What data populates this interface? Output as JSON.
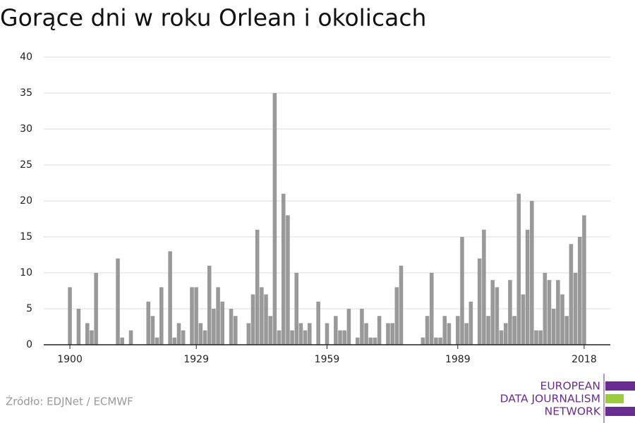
{
  "chart_data": {
    "type": "bar",
    "title": "Gorące dni w roku Orlean i okolicach",
    "x": [
      1900,
      1901,
      1902,
      1903,
      1904,
      1905,
      1906,
      1907,
      1908,
      1909,
      1910,
      1911,
      1912,
      1913,
      1914,
      1915,
      1916,
      1917,
      1918,
      1919,
      1920,
      1921,
      1922,
      1923,
      1924,
      1925,
      1926,
      1927,
      1928,
      1929,
      1930,
      1931,
      1932,
      1933,
      1934,
      1935,
      1936,
      1937,
      1938,
      1939,
      1940,
      1941,
      1942,
      1943,
      1944,
      1945,
      1946,
      1947,
      1948,
      1949,
      1950,
      1951,
      1952,
      1953,
      1954,
      1955,
      1956,
      1957,
      1958,
      1959,
      1960,
      1961,
      1962,
      1963,
      1964,
      1965,
      1966,
      1967,
      1968,
      1969,
      1970,
      1971,
      1972,
      1973,
      1974,
      1975,
      1976,
      1977,
      1978,
      1979,
      1980,
      1981,
      1982,
      1983,
      1984,
      1985,
      1986,
      1987,
      1988,
      1989,
      1990,
      1991,
      1992,
      1993,
      1994,
      1995,
      1996,
      1997,
      1998,
      1999,
      2000,
      2001,
      2002,
      2003,
      2004,
      2005,
      2006,
      2007,
      2008,
      2009,
      2010,
      2011,
      2012,
      2013,
      2014,
      2015,
      2016,
      2017,
      2018
    ],
    "values": [
      8,
      0,
      5,
      0,
      3,
      2,
      10,
      0,
      0,
      0,
      0,
      12,
      1,
      0,
      2,
      0,
      0,
      0,
      6,
      4,
      1,
      8,
      0,
      13,
      1,
      3,
      2,
      0,
      8,
      8,
      3,
      2,
      11,
      5,
      8,
      6,
      0,
      5,
      4,
      0,
      0,
      3,
      7,
      16,
      8,
      7,
      4,
      35,
      2,
      21,
      18,
      2,
      10,
      3,
      2,
      3,
      0,
      6,
      0,
      3,
      0,
      4,
      2,
      2,
      5,
      0,
      1,
      5,
      3,
      1,
      1,
      4,
      0,
      3,
      3,
      8,
      11,
      0,
      0,
      0,
      0,
      1,
      4,
      10,
      1,
      1,
      4,
      3,
      0,
      4,
      15,
      3,
      6,
      0,
      12,
      16,
      4,
      9,
      8,
      2,
      3,
      9,
      4,
      21,
      7,
      16,
      20,
      2,
      2,
      10,
      9,
      5,
      9,
      7,
      4,
      14,
      10,
      15,
      18
    ],
    "color": "#999999",
    "xlim": [
      1894,
      2024
    ],
    "xticks": [
      1900,
      1929,
      1959,
      1989,
      2018
    ],
    "ylim": [
      0,
      40
    ],
    "yticks": [
      0,
      5,
      10,
      15,
      20,
      25,
      30,
      35,
      40
    ],
    "grid": true
  },
  "source": "Źródło: EDJNet / ECMWF",
  "logo": [
    "EUROPEAN",
    "DATA JOURNALISM",
    "NETWORK"
  ]
}
